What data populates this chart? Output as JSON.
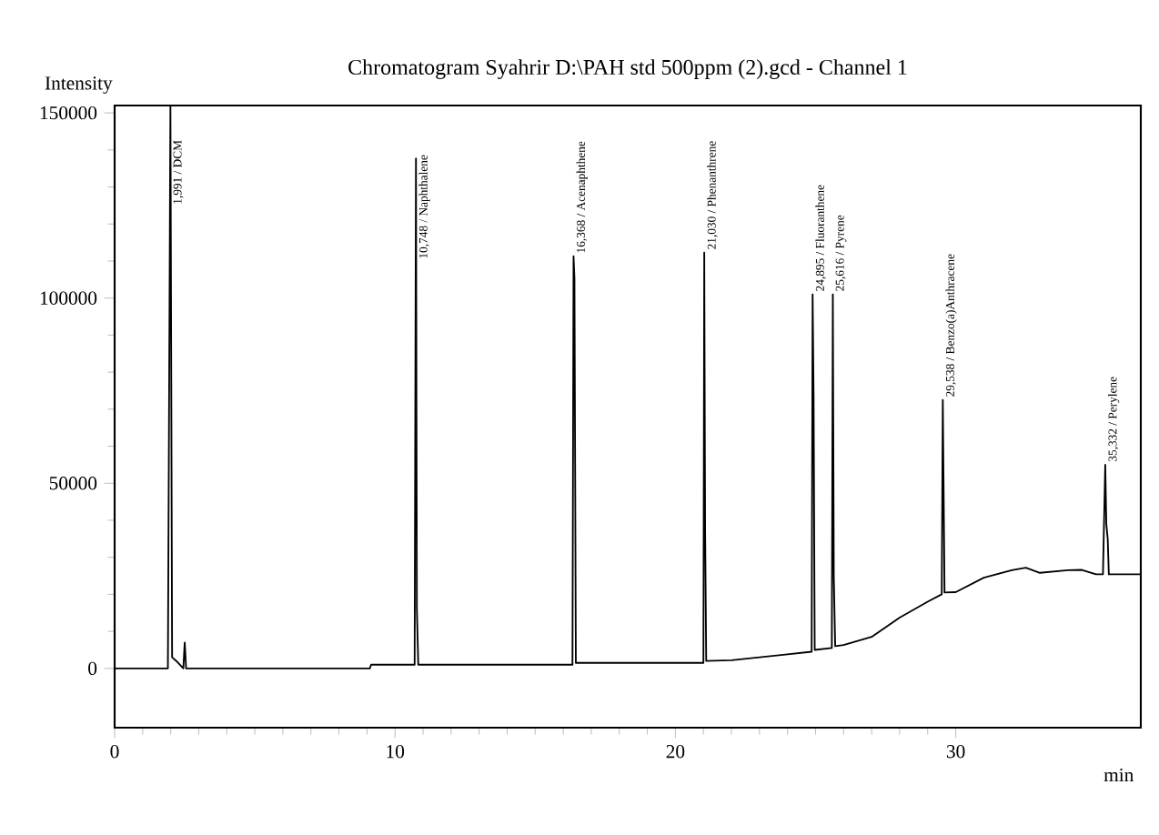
{
  "chart_data": {
    "type": "line",
    "title": "Chromatogram Syahrir D:\\PAH std 500ppm (2).gcd - Channel 1",
    "xlabel": "min",
    "ylabel": "Intensity",
    "xlim": [
      0,
      36.6
    ],
    "ylim": [
      -16000,
      152000
    ],
    "xticks": [
      0,
      10,
      20,
      30
    ],
    "yticks": [
      0,
      50000,
      100000,
      150000
    ],
    "grid": false,
    "marker": "none",
    "line_style": "solid",
    "series": [
      {
        "color": "#000000",
        "x": [
          0,
          1.9,
          1.99,
          2.05,
          2.2,
          2.45,
          2.5,
          2.55,
          9.1,
          9.15,
          10.7,
          10.748,
          10.78,
          10.83,
          16.33,
          16.368,
          16.4,
          16.45,
          21.0,
          21.03,
          21.06,
          21.1,
          22.0,
          23.0,
          24.0,
          24.86,
          24.895,
          24.93,
          24.97,
          25.58,
          25.616,
          25.65,
          25.7,
          26.0,
          27.0,
          28.0,
          29.0,
          29.5,
          29.538,
          29.6,
          30.0,
          31.0,
          32.0,
          32.5,
          33.0,
          34.0,
          34.5,
          35.0,
          35.25,
          35.332,
          35.37,
          35.42,
          35.46,
          36.6
        ],
        "values": [
          0,
          0,
          152000,
          3000,
          2000,
          0,
          7000,
          0,
          0,
          1000,
          1000,
          137700,
          16000,
          1000,
          1000,
          111300,
          105400,
          1500,
          1500,
          112300,
          38000,
          2000,
          2200,
          3000,
          3800,
          4500,
          101000,
          73000,
          5000,
          5500,
          101000,
          25000,
          6000,
          6300,
          8500,
          13700,
          18000,
          20000,
          72500,
          20500,
          20600,
          24500,
          26500,
          27200,
          25800,
          26500,
          26600,
          25400,
          25400,
          55000,
          39000,
          35000,
          25400,
          25400
        ]
      }
    ],
    "annotations": [
      {
        "text": "1,991 / DCM",
        "x": 1.991,
        "y": 124500
      },
      {
        "text": "10,748 / Naphthalene",
        "x": 10.748,
        "y": 109800
      },
      {
        "text": "16,368 / Acenaphthene",
        "x": 16.368,
        "y": 111300
      },
      {
        "text": "21,030 / Phenanthrene",
        "x": 21.03,
        "y": 112300
      },
      {
        "text": "24,895 / Fluoranthene",
        "x": 24.895,
        "y": 101000
      },
      {
        "text": "25,616 / Pyrene",
        "x": 25.616,
        "y": 101000
      },
      {
        "text": "29,538 / Benzo(a)Anthracene",
        "x": 29.538,
        "y": 72500
      },
      {
        "text": "35,332 / Perylene",
        "x": 35.332,
        "y": 55000
      }
    ]
  }
}
